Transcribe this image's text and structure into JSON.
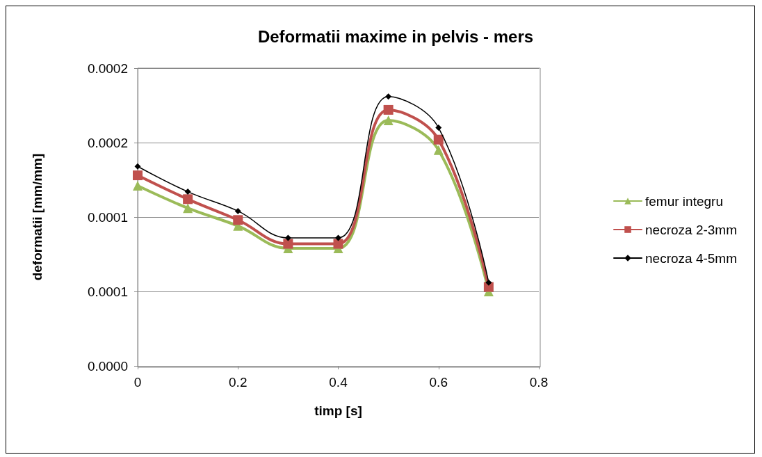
{
  "chart_data": {
    "type": "line",
    "title": "Deformatii maxime in pelvis - mers",
    "xlabel": "timp [s]",
    "ylabel": "deformatii [mm/mm]",
    "x": [
      0,
      0.1,
      0.2,
      0.3,
      0.4,
      0.5,
      0.6,
      0.7
    ],
    "series": [
      {
        "name": "femur integru",
        "color": "#9bbb59",
        "marker": "triangle",
        "values": [
          0.000121,
          0.000106,
          9.4e-05,
          7.9e-05,
          7.9e-05,
          0.000165,
          0.000145,
          5e-05
        ]
      },
      {
        "name": "necroza 2-3mm",
        "color": "#c0504d",
        "marker": "square",
        "values": [
          0.000128,
          0.000112,
          9.8e-05,
          8.2e-05,
          8.2e-05,
          0.000172,
          0.000152,
          5.3e-05
        ]
      },
      {
        "name": "necroza 4-5mm",
        "color": "#000000",
        "marker": "diamond",
        "values": [
          0.000134,
          0.000117,
          0.000104,
          8.6e-05,
          8.6e-05,
          0.000181,
          0.00016,
          5.6e-05
        ]
      }
    ],
    "xlim": [
      0,
      0.8
    ],
    "xticks": [
      0,
      0.2,
      0.4,
      0.6,
      0.8
    ],
    "ylim": [
      0,
      0.0002
    ],
    "yticks": [
      {
        "value": 0,
        "label": "0.0000"
      },
      {
        "value": 5e-05,
        "label": "0.0001"
      },
      {
        "value": 0.0001,
        "label": "0.0001"
      },
      {
        "value": 0.00015,
        "label": "0.0002"
      },
      {
        "value": 0.0002,
        "label": "0.0002"
      }
    ],
    "grid": "y",
    "legend": "right",
    "line_style": "solid"
  }
}
